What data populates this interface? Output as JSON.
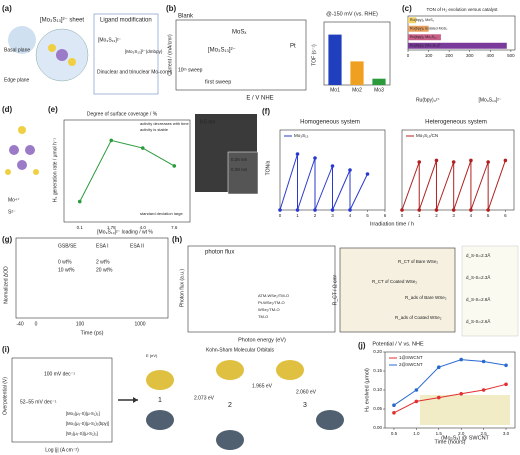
{
  "panels": [
    {
      "label": "(a)",
      "texts": [
        "[Mo₃S₁₃]²⁻ sheet",
        "Basal plane",
        "Edge plane",
        "Ligand modification",
        "[Mo₃S₁₃]²⁻",
        "[Mo₃S₁₃]²⁻(dmbpy)",
        "Dinuclear and trinuclear Mo-cores"
      ]
    },
    {
      "label": "(b)",
      "texts": [
        "Blank",
        "MoSₓ",
        "[Mo₃S₁₃]²⁻",
        "Pt",
        "first sweep",
        "10ᵗʰ sweep",
        "E / V NHE",
        "Current / (mA/cm²)",
        "@-150 mV (vs. RHE)",
        "TOF (s⁻¹)"
      ],
      "charts": [
        {
          "type": "bar",
          "categories": [
            "Mo1",
            "Mo2",
            "Mo3"
          ],
          "values": [
            3.2,
            1.5,
            0.4
          ],
          "colors": [
            "#1f3fbf",
            "#f0a020",
            "#2a9a3a"
          ],
          "ylim": [
            0,
            4
          ]
        }
      ]
    },
    {
      "label": "(c)",
      "texts": [
        "TON of H₂ evolution versus catalyst",
        "Ru(bpy)₃²⁺",
        "[Mo₃S₁₃]²⁻"
      ],
      "charts": [
        {
          "type": "hbar",
          "categories": [
            "Ru(bpy)₃ MoS₂",
            "Ru(bpy)₃ isolated MoS₂",
            "Ru(bpy)₃ Mo₂S₁₂",
            "Ru(bpy)₃ [Mo₃S₁₃]²⁻"
          ],
          "values": [
            40,
            100,
            160,
            480
          ],
          "colors": [
            "#f3d36b",
            "#e8a060",
            "#c8608a",
            "#7a3a9a"
          ],
          "xlim": [
            0,
            520
          ],
          "xticks": [
            0,
            100,
            200,
            300,
            400,
            500
          ]
        }
      ]
    },
    {
      "label": "(d)",
      "texts": [
        "Mo⁴⁺",
        "S²⁻"
      ]
    },
    {
      "label": "(e)",
      "texts": [
        "Degree of surface coverage / %",
        "[Mo₃S₁₃]²⁻ loading / wt %",
        "H₂ generation rate / µmol h⁻¹",
        "activity decreases with time",
        "activity is stable",
        "standard deviation large",
        "0.5 nm",
        "0.26 nm",
        "0.28 nm"
      ],
      "charts": [
        {
          "type": "line",
          "categories": [
            "0.1",
            "1.78",
            "4.0",
            "7.6"
          ],
          "values": [
            0.4,
            1.6,
            1.45,
            1.1
          ],
          "color": "#2a9a3a",
          "ylim": [
            0,
            2
          ]
        }
      ]
    },
    {
      "label": "(f)",
      "texts": [
        "Homogeneous system",
        "Heterogeneous system",
        "Irradiation time / h",
        "TON/a"
      ],
      "charts": [
        {
          "type": "line",
          "x": [
            0,
            1,
            1,
            2,
            2,
            3,
            3,
            4,
            4,
            5
          ],
          "series": [
            {
              "name": "Mo₃S₁₃",
              "color": "#2a3ad0",
              "values": [
                0,
                70,
                0,
                65,
                0,
                55,
                0,
                50,
                0,
                45
              ]
            }
          ],
          "xlim": [
            0,
            6
          ],
          "ylim": [
            0,
            100
          ],
          "xticks": [
            0,
            1,
            2,
            3,
            4,
            5,
            6
          ]
        },
        {
          "type": "line",
          "x": [
            0,
            1,
            1,
            2,
            2,
            3,
            3,
            4,
            4,
            5,
            5,
            6
          ],
          "series": [
            {
              "name": "Mo₃S₁₃/CN",
              "color": "#b02020",
              "values": [
                0,
                60,
                0,
                62,
                0,
                60,
                0,
                62,
                0,
                60,
                0,
                62
              ]
            }
          ],
          "xlim": [
            0,
            6.5
          ],
          "ylim": [
            0,
            100
          ],
          "xticks": [
            0,
            1,
            2,
            3,
            4,
            5,
            6
          ]
        }
      ]
    },
    {
      "label": "(g)",
      "texts": [
        "GSB/SE",
        "ESA I",
        "ESA II",
        "0 wt%",
        "2 wt%",
        "10 wt%",
        "20 wt%",
        "Normalized ΔOD",
        "Time (ps)",
        "-40",
        "0",
        "100",
        "1000"
      ]
    },
    {
      "label": "(h)",
      "texts": [
        "photon flux",
        "Photon flux (a.u.)",
        "Photon energy (eV)",
        "ATM-WSe₂/TM-O",
        "Pt-WSe₂/TM-O",
        "WSe₂/TM-O",
        "TM-O",
        "R_CT of Bare WSe₂",
        "R_CT of Coated WSe₂",
        "R_ads of Bare WSe₂",
        "R_ads of Coated WSe₂",
        "Potential / V vs. NHE",
        "R_CT / Ω cm²",
        "d_S-S=2.3Å",
        "d_S-S=2.3Å",
        "d_S-S=2.8Å",
        "d_S-S=2.6Å"
      ]
    },
    {
      "label": "(i)",
      "texts": [
        "Overpotential (V)",
        "Log |j| (A cm⁻²)",
        "100 mV dec⁻¹",
        "52–55 mV dec⁻¹",
        "[Mo₃(μ₃-S)(μ-S₂)₃]",
        "[Mo₃(μ₃-S)(μ-S₂)₃(bpy)]",
        "[W₃(μ₃-S)(μ-S₂)₃]",
        "Kohn-Sham Molecular Orbitals",
        "E (eV)",
        "2.073 eV",
        "1.965 eV",
        "2.060 eV",
        "1",
        "2",
        "3"
      ]
    },
    {
      "label": "(j)",
      "texts": [
        "(Mo₃Sₓ) @ SWCNT"
      ],
      "charts": [
        {
          "type": "line",
          "x": [
            0.5,
            1,
            1.5,
            2,
            2.5,
            3
          ],
          "xlabel": "Time (hours)",
          "ylabel": "H₂ evolved (μmol)",
          "series": [
            {
              "name": "1@SWCNT",
              "color": "#e03030",
              "values": [
                0.04,
                0.07,
                0.08,
                0.09,
                0.1,
                0.115
              ]
            },
            {
              "name": "2@SWCNT",
              "color": "#2a6ad0",
              "values": [
                0.06,
                0.1,
                0.16,
                0.18,
                0.175,
                0.165
              ]
            }
          ],
          "xlim": [
            0.3,
            3.2
          ],
          "ylim": [
            0,
            0.2
          ],
          "xticks": [
            0.5,
            {
              "value": 1,
              "label": "1.0"
            },
            1.5,
            {
              "value": 2,
              "label": "2.0"
            },
            2.5,
            {
              "value": 3,
              "label": "3.0"
            }
          ],
          "yticks": [
            {
              "value": 0,
              "label": "0.00"
            },
            0.05,
            {
              "value": 0.1,
              "label": "0.10"
            },
            0.15,
            {
              "value": 0.2,
              "label": "0.20"
            }
          ]
        }
      ]
    }
  ]
}
